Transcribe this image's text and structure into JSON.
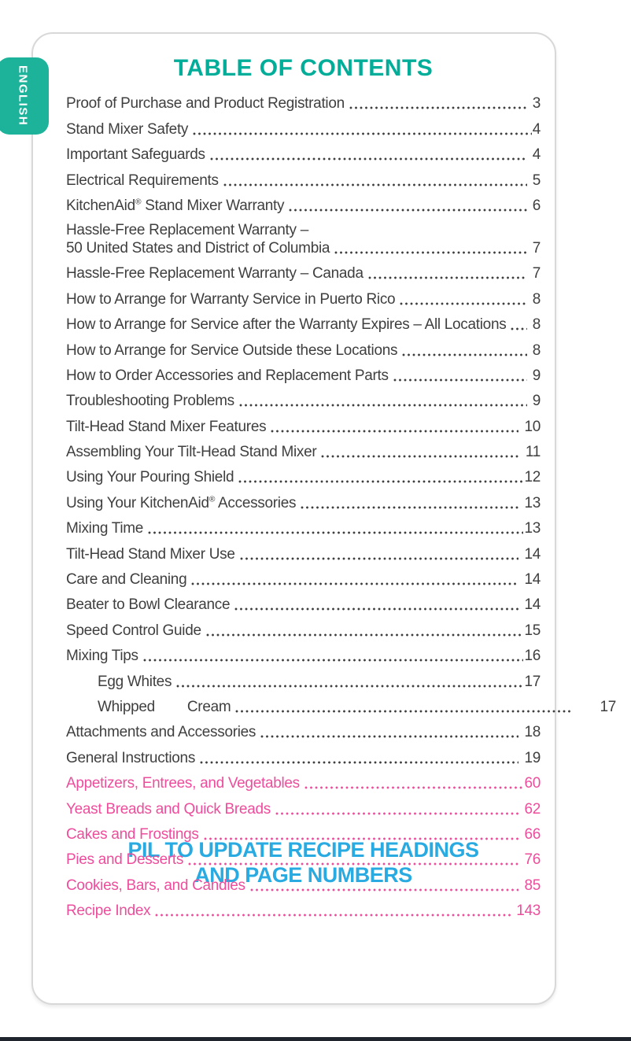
{
  "page": {
    "language_tab": "ENGLISH",
    "title": "TABLE OF CONTENTS",
    "overlay_note": {
      "line1": "PIL TO UPDATE RECIPE HEADINGS",
      "line2": "AND PAGE NUMBERS"
    },
    "colors": {
      "teal": "#00ad99",
      "tab": "#1db39a",
      "pink": "#ee4d9c",
      "note_blue": "#29abe2",
      "text": "#3f3f3f"
    },
    "toc_entries": [
      {
        "label": "Proof of Purchase and Product Registration",
        "page": "3"
      },
      {
        "label": "Stand Mixer Safety",
        "page": "4",
        "tight": true
      },
      {
        "label": "Important Safeguards",
        "page": "4"
      },
      {
        "label": "Electrical Requirements",
        "page": "5"
      },
      {
        "label": "KitchenAid® Stand Mixer Warranty",
        "page": "6"
      },
      {
        "label": "Hassle-Free Replacement Warranty –",
        "label_line2": "50 United States and District of Columbia",
        "page": "7"
      },
      {
        "label": "Hassle-Free Replacement Warranty – Canada",
        "page": "7"
      },
      {
        "label": "How to Arrange for Warranty Service in Puerto Rico",
        "page": "8"
      },
      {
        "label": "How to Arrange for Service after the Warranty Expires – All Locations",
        "page": "8"
      },
      {
        "label": "How to Arrange for Service Outside these Locations",
        "page": "8"
      },
      {
        "label": "How to Order Accessories and Replacement Parts",
        "page": "9"
      },
      {
        "label": "Troubleshooting Problems",
        "page": "9"
      },
      {
        "label": "Tilt-Head Stand Mixer Features",
        "page": "10"
      },
      {
        "label": "Assembling Your Tilt-Head Stand Mixer",
        "page": "11"
      },
      {
        "label": "Using Your Pouring Shield",
        "page": "12",
        "tight": true
      },
      {
        "label": "Using Your KitchenAid® Accessories",
        "page": "13"
      },
      {
        "label": "Mixing Time",
        "page": "13",
        "tight": true
      },
      {
        "label": "Tilt-Head Stand Mixer Use",
        "page": "14"
      },
      {
        "label": "Care and Cleaning",
        "page": "14"
      },
      {
        "label": "Beater to Bowl Clearance",
        "page": "14"
      },
      {
        "label": "Speed Control Guide",
        "page": "15",
        "tight": true
      },
      {
        "label": "Mixing Tips",
        "page": "16",
        "tight": true
      },
      {
        "label": "Egg Whites",
        "page": "17",
        "indent": true,
        "tight": true
      },
      {
        "label": "Whipped Cream",
        "page": "17",
        "indent": true,
        "justified": true
      },
      {
        "label": "Attachments and Accessories",
        "page": "18"
      },
      {
        "label": "General Instructions",
        "page": "19"
      },
      {
        "label": "Appetizers, Entrees, and Vegetables",
        "page": "60",
        "recipe": true,
        "tight": true
      },
      {
        "label": "Yeast Breads and Quick Breads",
        "page": "62",
        "recipe": true
      },
      {
        "label": "Cakes and Frostings",
        "page": "66",
        "recipe": true
      },
      {
        "label": "Pies and Desserts",
        "page": "76",
        "recipe": true
      },
      {
        "label": "Cookies, Bars, and Candies",
        "page": "85",
        "recipe": true
      },
      {
        "label": "Recipe Index",
        "page": "143",
        "recipe": true
      }
    ]
  }
}
